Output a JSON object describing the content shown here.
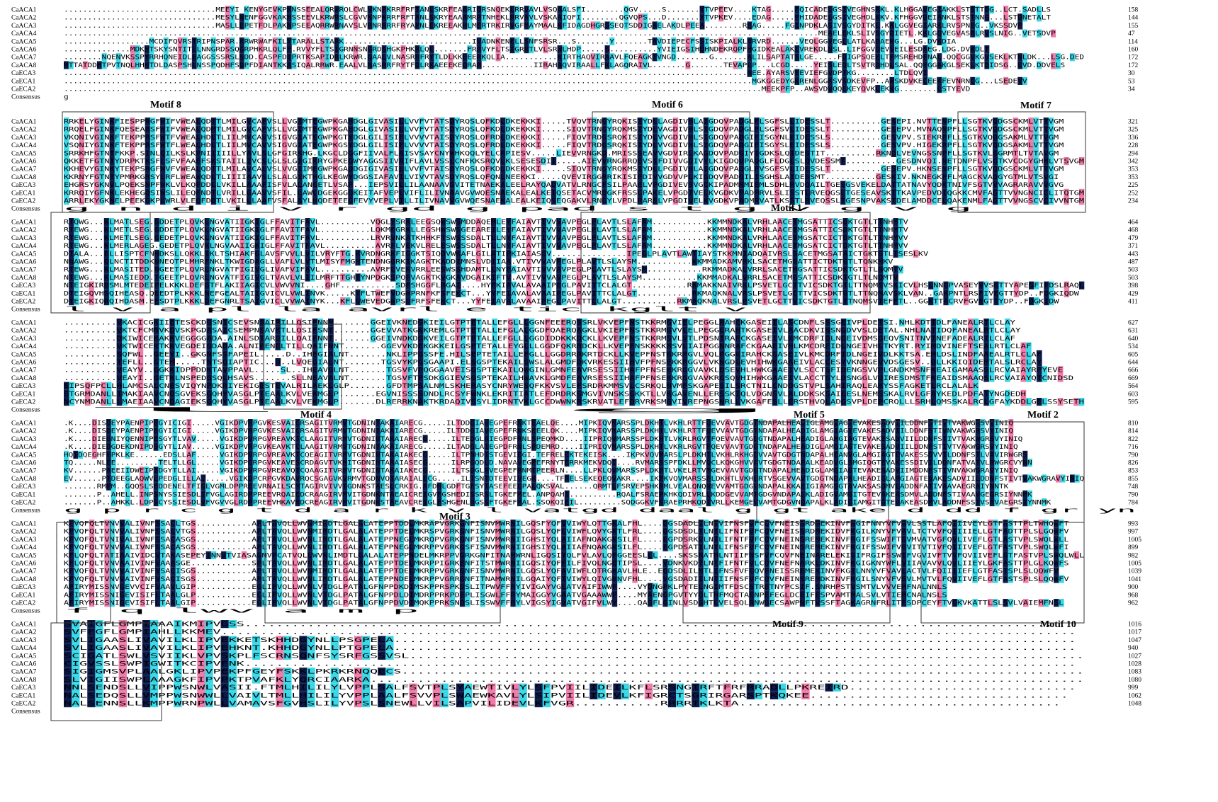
{
  "colors": {
    "identical": "#0d1a4a",
    "high": "#f07aa8",
    "partial": "#38d8e8",
    "text_on_dark": "#ffffff",
    "text": "#000000",
    "box": "#333333"
  },
  "seq_names": [
    "CaACA1",
    "CaACA2",
    "CaACA3",
    "CaACA4",
    "CaACA5",
    "CaACA6",
    "CaACA7",
    "CaACA8",
    "CaECA3",
    "CaECA1",
    "CaECA2",
    "Consensus"
  ],
  "blocks": [
    {
      "rows": [
        "................................MEEYI KENYGEVKPKNSSEEALQRWRQLCWLVKNPKRRFRFTANLSKRFEAARIQRSNQEKLRRVAVLVSQAALSFI........QGV.....S.......YTVPEEV....KTAG.....FQICADELGSIVEGHNSRKL.KLHGGAVEGIAKKLSTSTTDG..LCT.SADLLS",
        "................................MESYLNENFGGVKAKHSSEEVLKRWRSLCGVVKNPKRRFRFTANLSKRYEAAAMRRTNHEKLRRVAVLVSKAAIQFI........QGVQPS...D.......YTVPKEV....EDAG.....FHIDADELGSIVEGHDLKKV.KFHGGVDEIANKLSTSTNNG...LSTDNETALT",
        "................................MASLLEPETFDLPAKNPSEEAQRRWRNAVSLVRNRRRRFRYAPNLEKREEAKHLMERTRKIRVGFMAYMAALKFIDAGDHGRSSEQTSDDIGAELAKDLPEEA........REAG.....FGINPDKLASIVSGYDITKL.KKLGGVEGIARKLRVSPNEG..VKSSDVP",
        "...............................................................................................................................................................MEAELEKLSLIVSGYDIETL.KKLGGVEGVASRLRVSLNIG..VETSDVP",
        "..................MCDIFQVRSTRIPNSPAR.KRWRWAFKILYTARALLSTARK...........................IVADNKENELLSNFSRSR...S.......Y.......TAVDIEPECFSSISKPIALKLVRVRD......VEQLGGVEGLLATLKADAEKG...LG.DVKDIA",
        "..............MDKHTSKYSNTITLLNNGRDSSQGRPHKRLQLFF.RVVYFLTSIGRNNSNGRDSHGKPHKRLQL.......FRAVYFLTSIGRNTLVLSRWLHDP.....S..........YVIEIGSIHDHNDEKRQPFHGIDKEALAKLVREKDLNSL.LIFGGVQEVVEILESDAEG.LDG.DVKDLT",
        "........NQENVKSSPYRRHQNEIDLEAGGSSSRSLSDD.CASPFDIPRTKSAPIDRLKRWR.QAALVLNASRRFRYTLDLKKEEERKQLIA...........KIRTHAQVIRAAVLFQEAGKTVNGD.......G.......ALILSAPTATSLGE.....FDIGPSQEELTFMSREHDFNAL.QQCGGVKGVSEKLKTNLDK...LSG.DED",
        "MTTATDDHTPVTNQLHHHTDLDASPSHLNSSPQDHFSDPFDIANTKKASIQALRRWR.EAALVLNASRRFRYTFDLRKAEEEKEQRAR...........IIRAHAQVIRAALLFKLAGQRAIVL.......G.......TEVAPLP...LCGD.....YEISLEQLTSVTRDHDLSAL.QQYGGAKGLSEKLKTDIDSG..LVD.DDVELS",
        "................................................................................................................................................NEE.AYARSVEEVIEFGVDPTKG........LTDLQVI",
        ".................................................................................................................................................MGKGGEDYGKRENLGGKSVSDKEVFP..AWSKDVKECEEKFEVNRNCG...LSEDEVV",
        "...................................................................................................................................................MEEKPFP..AWSVDVQQLKEYQVKLEKKG........LSTYEVD",
        ""
      ],
      "nums": [
        "158",
        "144",
        "155",
        "47",
        "114",
        "160",
        "172",
        "172",
        "30",
        "53",
        "34",
        ""
      ],
      "consensus": "g",
      "motifs": [
        "Motif 8",
        "Motif 6",
        "Motif 7"
      ]
    },
    {
      "rows": [
        "RRKELYGINKFIESPPRGFWIFVWEALQDTTLMILGVCAFVSLLVGIMTEGWPKGAHDGLGIVASILLVVFVTATSDYRQSLQFKDLDKEKKKI.....TVQVTRNGYRQKISIYDLLAGDIVHLAIGDQVPADGLFLSGFSLLIDESSLT..........GESEPI.NVTTENPFLLSGTKVQDGSCKMLVTTVGM",
        "RRQELFGINKFQESEARSFWIFVWEALQDMTLMILGVCAFVSLLVGIMTEGWPKGAHDGLGIVASILLVVFVTATSDYRQSLQFKDLDKEKKKI.....SIQVTRNGYRQKMSIYDLVAGDIVHLSIGDQVPADGLFLSGFSVLIDESSLT..........GESEPV.MVNAQNPFLLSGTKVQDGSCKMLVTTVGM",
        "VKQNIVGINKFTEKPPRSFWTFVWEALHDLTLIILMVCAVVSIGVGIATEGWPKGTYDGLGILISIFLVVVVTAISDYRQSLQFRDLDKEKKKI.....FIQVTRDGSRQKISIYDLVVGDIVHLSIGDQVPADGIFISGYNLEIDESSLS..........GESVPV.SIEKRPFLLSGTKVQDGSAKMLVTTVGM",
        "VSQNIYGINKFTEKPPRSFWTFLWEALHDLTLIILMVCAVVSIGVGIATEGWPKGSYDGLGILISIFLVVVVTAISDYRQSLQFRDLDKEKKKI.....FIQVTRDGSRQKISIYDLVVGDIVHLSIGDQVPADGIFISGYSLEIDESSLS..........GESVPV.HIGEKRPFLLSGTKVQDGSAKMLVTTVGM",
        "SRRKHFGTNTFKKP.SINLQILKSLKPNIIIIILLYAVLSLGFGIRKHG.LKGCLDGGFIIVALFLAISVSAYCNYWHKQQLYELCRPIESV.....LIEVVRNGKD.MRISSSEAVVGDVIRLKAGDQVPADGIYIGDKSLQIDESTIT..........RKNDLVEVNGSSNPFLLSGTKVLSGRMTLTVTAVGM",
        "QKKETFGTNTYDRPKTKSFLSFVFAAEFSKSTAIILIVCSLGLSLGIGIKRYGPKEGWYAGGSIIVAIFLAVLVSSLCNFKKSRQVLKLSESESDII.....AIEVVRNGRRQEVSIFDIVVGDIVYLKIGDQVPADGLFLDGLSLQVDESSMT..........GESDNVQI.NETQNPFLVSGTKVCDGYGHMLVTSVGM",
        "KKHEVYGINKYTEKPSRGFWVFVWEALQDTTLMILAVCALVSLVVGIIMEGWPKGAQDGIGIVASILLVVFVTAISDYRQSLQFKDLDKEKKKI.....SIQVTRNGYRQKMSIYDLLPGDIVHLAIGDQVPADGLFVSGFSVLIDESSLT..........GESEPV.HKNSENPFLLSGTKVQDGSCKMLVTTVGM",
        "KKRNYFGTNTYPMRKGRSYLRFLWEAWQDLTLIIIIAAVSLSLALGIKTHGLKEGWYDGGSIAFAVILVIVVTAVSDYRQSLQFQNLNEEKKI.....QVEVIRGGRRIKISIFDIVVGDVVPLKIGDQVPADGILISGHSLAIDESSMT..........GESKIV.NKNEGKPFLMAGCKVADGYGTMLVTSVGI",
        "EHGRSYGKNVLPQEKSNPFWKLVLKQFDDLLVKILLAAAFISFVLALANGETLVSAF...IEPSVILLILAANAAVGVITETNAEKALEELRAYQADVATVLRNGCFSILPAAELVPGDIVEVSVGCKIPADMRMIEMLSDHLRVDQAILTGESGSVEKELDATTATNAVYQDKTNIVFSGTVVVAGRARAVVVGVG",
        "KRRQIYGFNKLEKHEGQSIWSLILEQFNDTLVRILLGAAVVSFIL.LAWLDGEKGGQKEITAFVEPLVIFLILIVNAAVGVWQESNAEKALEALKEIQSETACVMRDGKFRSSLPAKELVPGDIVELKVGDKVPADMRVLSLISSTLRVEQGSLTGESEAVSKTTKAVPEDVDIQGKKCMVFAGTTVVNGNCICLITQTGM",
        "ARRLEKYGKNELPEEKGKPLWRLVLEQFDDTLVKILLLAAFVSFALAYLHQDETEEGFEVYVEPLVILLILIVNAVVGVWQESNAEKALEALKEIQSEQGAKVLRNGYLVPDLPARELVPGDIVELKVGDKVPADMRVATLKSSTLRVEQSSLTGESNPVAKSTDELAMDDCELQAKENMLFAGTTVVNGSCVCIVVNTGM",
        ""
      ],
      "nums": [
        "321",
        "325",
        "336",
        "228",
        "294",
        "342",
        "353",
        "353",
        "225",
        "252",
        "234",
        ""
      ],
      "consensus": "g    n              d    i                                                        v   r         gd      g   pad         s                 t                    g   v    g     v   g",
      "motifs": [
        "Motif 1"
      ]
    },
    {
      "rows": [
        "RTQWG...KLMATLSEG.GDDETPLQVKLNGVATIIGKIGLFFAVITFAVL..........VQGLYSRKLEEGSQWSWSMDDAQEMLEYFAIAVTIVVVAVPEGLPLAVTLSLAFAM...........KKMMNDKALVRHLAACETMGSATTICSDKTGTLTTNHMTV",
        "RTEWG...KLMETLSEG.GDDETPLQVKLNGVATIIGKIGLFFAVITFAVL..........LQKMFGRKLLEGSHWSWSGEEAREILEYFAIAVTIVVVAVPEGLPLAVTLSLAFAM...........KKMMNDKALVRHLAACETMGSATTICSDKTGTLTTNHMTV",
        "RTEWG...KLMETLSEG.GEDETPLQVKLNGVATIIGKIGLFFAVITFAVL..........LRVRVNKATKHHKFTSWSSSDALTLLNYFAIAVTIVVVAVPEGLPLAVTLSLAFAM...........KKMMNDKALVRHLAACETMGSATCICTDKTGTLTTNHMVV",
        "RTEWG...KLMERLAGEG.GEDETPLQVKLNGVAAIIGKIGLFFAVITFAVL..........AVRFLVEKVLRELESWSSSDALTLLNYFAIAVTIVVVAVPEGLPLAVTLSLAFAM...........KKMMNDKALVRHLAACETMGSATCICTDKTGTLTTNHMVV",
        "DTALA...ELLISPTCFNHDKSLLQKKLIKLTSHIAKFGLAVSFVVLLVILVRYFTG.KVRDNGRKFIGGKTSIQDVWKAFLGILATIPKIAIASGV...............IPEGLPLAVTLAWTIAYSTKKMNIADQAIVRSLSACETMGSATAICTGKTGTLTSESLKV",
        "NNAWG...QLNCTITDDKNNEQTPLMHRFNKLTKWIGDAGLLVAFLVLVTLMISYFMGHTENDNGGRKIKAGKTKADDIMNSLVDIIAA.VTIVVVAVPEGLPLAVTLSLAYSM...........KKMMADKAMVRKLSACETMGSATTICTDKTGTLTQNKMKV",
        "RTEWG...KLMASITED.NGEETPLQVRLNGVATFIGIVGLIVAFVIFAVL..........AVRFLVEKVRRLEESWSSHDAMTLLNYFAIAVTIVVVAVPEGLPLAVTLSLAYSM...........RKMMADKALVRRLSACETMGSATTICSDKTGTLTLNQMTV",
        "NTEWG...KLMASIEDD.TGEETPLQVRLNGVATFIGIVGLTVAVLVLIILMRFTTGHTYNPDGKSPQFVAGKTKVGKAVDGAIKIFTV.AVTIVVVAVPEGLPLAVTLSLAYSM...........KKMMADKALVRRLSACETMGSATTICSDKTGTLTLNQMTV",
        "NTEIGKIRDSMLMTEDEIPELKKKLDEFGTFLAKIIAGICVLVWVVNI....GHF...........SDPSHGGFLRGAI....HYFKIAVALAVAAIPEGLPAVITTCLALGT...........RKMAKKNAIVRKLPSVETLGCTTVICSDKTGTLTTNQMSVSKICVLHSLNNGPVASEYVVSGTTYAPEGFIFDSLRAQL",
        "DTEIGQVHSQIHEASQ.QEEDTPLKKKLNEFGEALTAIIGVICVLVWLINVK.....KYFLTWEFVDGWPRNFKFSFEKCT...YYFEIAVALAVAAIPEGLPAVITTCLALGT...........RKMAQKNALVRSLPSVETLGCTTVICSDKTGTLTTNQMAVSKLVAN..GAKPNTLRSFIVEGTTYDP..FDGKIQDW",
        "DTEIGKIQRQIHDASM.EESDTPLKKKLDEFGNRLTSAIGVICLVVWAINYK...KFLSWEVEDGWPSDFRFSFEKCT...YYFEIAVALAVAAIPEGLPAVITTCLALGT...........RKMAQKNALVRSLPSVETLGCTTVICSDKTGTLTTNQMSVTEFFTL..GGKTTACRVFGVEGTTYDP..FDGKIDW",
        ""
      ],
      "nums": [
        "464",
        "468",
        "479",
        "371",
        "443",
        "487",
        "503",
        "503",
        "398",
        "429",
        "411",
        ""
      ],
      "consensus": "                    l                                                        v   a          pl   la           avrl    e    tic kglt    v",
      "motifs": []
    },
    {
      "rows": [
        "..........VKACICGKIIETESCKDGSNICSEVSNSAIRILLQSIFNNN.......GGEIVKNEDGKIEILGTPTETALLEFGLLLGGNFEEERQSSRLVKVEPFNSTKKRMGVIELPEGGLRAHCKGASEIILASCDNFLSSSGEIVPLDETSI.NHLKDTIDLFANEALRTLCLAY",
        "..........VKTCFCMNVKDVSKPGDASAICSEMPNSAVKTLLQSIFSNT.......GGEVVATKGKKREMLGTPTETALLEFGLALGGDFQAERQAGKLVKIEPFNSTKKRMGVVLELPEGGLRAHTKGASEIVLAACDKVINSNGDVVSLDETAL.NHLNATIDQFANEALRTLCLAY",
        "..........DKIWICEKAKKVEGGGGADA.AINLSDTARDILLQAIFNNT.......GGEIVNDKDGKVEILGTPTETALLEFGLLLGGDIDDKKKDCKLLKVEPFNSTKKRMSVLVTLPDSNTRAFCKGASEIVLKMCDRFIDLNGEIVDMSGEQVSNITNVINEFADEALRTLCLAF",
        "..........VKTWICEKTKKVEGDEIGDADA.ALNIPENELTILLQAIFNNT.......GGEVVKDEKGKKEILGSPTETALLEYGLLLGGDFQKRRDCKLLKVEPFNSKKKKMSVLIAIPGGNNRAFCKGAAEIVHLKMCDRFIDLNGEIVHLTKYRT.RYIMDVINEFTSEALRTLCLAF",
        "..........SQFWL..GEEYI..GKGNFSSFAPEIL.....D..IHEGIALNT.......NKLIPPGSSFE.HILSEPTETAILLEFGLLLGGDRRRKRTDCKLLKVEPFNSTKKRMGVLVQLPGGKIRAHCKGASEIVLKMCDRFIDLNGEIVDLKKTSA.EMLDSLINDFAAEALRTLCLAF",
        "..........TEFLL..GTEM.....TNTSQIAPTIC...D..LVQEGIALNT.......TGSVYKPGSGAAPI.ELSGSPTEKAILSWSLALGMDFDKVRKESSIIHVFPFNSEKKRGGVLVKNGDGEVHIHWKGAAEIVLACCESYVKNNGEVVDSGESV..DLLKKIQIDEMTALSLRCLAY",
        "..........VEAYV..GGKKIDPPDDKTAVPPAVL.....SL..IHEAVGLNT.......TGSVFVPQGGAAVEISGSPTEKAILQWGINLGMNFEAVRSESSIIHAFPFNSEKKRGGVAVKLDSEVHLHWKGAAEIVLSCCTSFIDENGSVVPLGNDKMSNFKEAIGAMAASSLRCVAIAYRPYEVE",
        "..........VEAYI..GETKLNSPEDGSQLHSAVS.......SLLNEAVALNT.......TGSVFTPSDKGGIEVSGSPTEKAILHWAVKLGMDFEAVRSESSIIHAFPFNSEKKRGGVAVKRGSQVHIHWKGAAEIVLACCTGYLDSNGGLVQIRESDMSTFKEAIDSMAAQSLRCVAIAYQTCNIDSD",
        "EIPSQFPCLLHLAMCSALCNESVIQYNPDKRIYEKIGESTEVALRILAEKLGLP.......GFDTMPSALNMLSKHERASYCNRYWESQFKKVSVLEFSRDRKMMSVLCSRKQLNVMFSKGAPESILSRCTNILCNDDGSTVPLSAHIRAQLEAKYSSFAGKETLRCLALALK",
        "STGRMDANLLIMAKIAAVCNDSGVEKSGQHYVASGLPTEAALKVLVEKMGLP.......EGVNISSSSDNDLRCSYFWNKLEKRITIATLEFDRDRKSMGVIVNSKSGKKTLLVKGAVENLLERSSKIQLVDGNSVLALDDKSKSAILESLNEMSSKALRVLGFAYKEDLPDFATYNGDEDH",
        "NCYNMDANLLLMAEIAAVCNDAGIEKSGQHYVASGLPTEAALKVLVEKMGLP.......DLRERRKNAKTKRDAQIVSSYLIDRNTVKLGCCDWWNKRSKRVATLEFDRVRKSMGVIVREPNGSNRLLVKGAFESLLERSTHVQLADGSVPLDEPCRQLLLSRHLQMSSKALRCLGFAYKDDLGELSSYSETH",
        ""
      ],
      "nums": [
        "627",
        "631",
        "640",
        "534",
        "605",
        "644",
        "666",
        "669",
        "564",
        "603",
        "595",
        ""
      ],
      "consensus": "                                    l                                                                                                    g",
      "motifs": [
        "Motif 4",
        "Motif 5",
        "Motif 2"
      ]
    },
    {
      "rows": [
        ".K....DISDEYPAENPIPEGYICIGI.....VGIKDPVRPGVKESVAICRSAGITVRMVTGDNINTAKAIARECG.....ILTDDGIAVEGPEFRNKTEAELQE....MIPKIQVMARSSPLDKHTLVKHLRTTFQEVVAVTGDGTNDAPALHEADIGLAMGIAGTEVAKESADVIILDDNFSTIVTVAKWGRSVYINIQ",
        ".K....DISDEYPAENPIPEGYICIGI.....VGIKDPVRPGVKESVAICRSAGITVRMVTGDNINTAKAIARECG.....ILTDDGIAVEGPEFRNKSEEELQK....MIPKIQVMARSSPLDKHTLVKHLRTTFQEVVAVTGDGTNDAPALHEADIGLAMGIAGTEVAKESADVIILDDNFSTIVNVAKWGRSVYINIQ",
        ".K....DIEGNIYQENNIPESGYTLVAV.....VGIKDPVRPGVREAVKTCLAAGITVRMVTGDNINTAKAIARECG.....ILTEDGLAIEGPDFRNLSPEQMKD....IIPRIQVMARSSPLDKHTLVKRLRGVTFQEVVAVTGDGTNDAPALHEADIGLAMGIAGTEVAKESADVIILDDNFSTIVTVAKWGRSVYINIQ",
        ".K....DIEDGDEKDNIPDSGYTLIAV.....VGIKDPVRPGVKEAVKTCLAAGITVRMVTGDNINTAKAIARECG.....ILTADGLAIEGPDFRNLSPDEMRD....IIPRIQVMARSSPLDKHTLVKRLRGVTFQEVVAVTGDGTNDAPALHEADIGLAMGIAGTEVAKESADVIILDDNFSTIVTVAKWGRSVYINIQ",
        "HQIDQEGHFHPKLKE......EDSLLAF.....VGIKDPVRPGVREAVKTCQEAGITVRMVTGDNINTAKAIAKECG.....ILTPNHDISTGEVIEGI.TEFRELEKTEKEISK....IKPKVQVMARSLPLDKHTLVKHLRKHGDVVAVTGDGTNDAPALHEANVGLAMGIAGTEVAKESSDVVILDDNFSTLVAVIRWGRS",
        "TQ.....NLEE.........TELTLLGL.....VGIKDPCRPGVKEAVESCRDAGVTVKMITGDNIHTARAIASECG.....ILRPGQDLD.NAVAVEGPEFRNYTERRKMEKVDQI....RVMARSSPFDKLLMVQCLKQKGHVVAVTGDGTNDAPALKEADVGLSMGIQGTEVAKESSDIVILDDNFATVATVLRWGRCVYNN",
        "KV......PAEEIIDWEIPIDGYTLLAI.....VGIKDPVRPGVREAVQTCQAAGITVRMVTGDNINTAKAIAKECG.....ILTSDGLAVEGPEFRNMTPEERLN....LLPKLQVMARSSPLDKHTLVKELRTVMGEVVAVTGDGTNDAPALHEADIGLAMGIAGTEVAKENADVIIMDDNFSTIVNVAKWGRAVYINIQ",
        "EV......PTDEEGLAQWVLPEDGLILLAI.....VGIKDPCRPGVKDAVRQCSGAGVKVRMVTGDNVQTARAIALECG.....ILTSNTDTEEVIVEGK....TFRELSEKEQEQVAKR....IKPKVQVMARSSPLDKHTLVKHLRTVSGEVVAVTGDGTNDAPALHEADIGLAMGIAGTEVAKESADVIILDDNFSTIVTVAKWGRAVYINIQ",
        ".......RMPM..GQQSLSFDDENELTFIGLVGMLDPPREEVRNAILSCMTAGIRVIVVTGDNKSTAESLCRKIG.AFDHLGDFTGFSYTASEFEELPALQKSVAL......QRMTLFSRVEPSHKRMLVEALQNQNEVVAMTGDGVNDAPALKKAEIGIAMGSGTAVAKSASDMVLADDNFATIVAAVAEGRAIYNNTK",
        ".......P..AHELL.INPSNYSSIESDLIFVGLAGIRDPPREEVRQAIEDCRAAGIRVMVITGDNKNTAEAICREIGVFGSHEDISSRSLTGKEFMEL.ANPQAHI..........RQALFSRAEPKHKQDIVRLLKDDGEVVAMTGDGVNDAPALKLADIGVAMGITGTEVAKEASDMVLADDNFSTIVAAVGEGRSIYNNMK",
        ".......P..AHKKL.LDPSCYSSIESDLVFVGVVGLRDPPREEVHKAVNDCREAGIRVMVITGDNKSTAEAVCREIGLFSHGENLRGSSFTGKEFMAL.SSQKQIEIL.........SQDGGKVFSRAEPRHKQDIVRLLKEMGEVVAMTGDGVNDAPALKLADIGIAMGITGTEVAKEASDMVLADDNFSSIVSAVAEGRSIYNNMK",
        ""
      ],
      "nums": [
        "810",
        "814",
        "822",
        "716",
        "790",
        "826",
        "853",
        "855",
        "748",
        "790",
        "784",
        ""
      ],
      "consensus": "                                    g  p   r           c      g      t   d     a                                                  r          k  v l               vatgd    daal       g   gt    ake   d      dd  f           gr  yn",
      "motifs": [
        "Motif 3"
      ]
    },
    {
      "rows": [
        "KFVQFQLTVNVVALIVNFSSACLTGS...........APLTAVQLLWVNMIMDTLGALALATEPPTDDLMKRAPVGRKGNFISNVMWRNILGQSFYQFVVIWYLQTTGKALFHL....DGSDADLILNTVIFNSFVFCQVFNEISSRDMEKINVFNGIFNNYVFVAVLSSTLAFQIIIVEYLGTFASTTPLTWHQWFT",
        "KFVQFQLTVNVVALIVNFSSACVTGS...........APLTAVQLLWVNMIMDTLGALALATEPPTDELMKRSPVGRKGNFISNVMWRNILGQSLYQFLVIWFLQVYGKTLFRL....DGSDSDLTLNTLIFNIFVFCQVFNEISSRDMEKIDVFKGILKNYVFVAVLTCTVVFQIIIIELLGTFADTTPLSLGQWFV",
        "KFVQFQLTVNIVALIVNFSSACASGS...........APLTAVQLLWVNLIMDTLGALALATEPPNEGLMKRQPVGRKGNFISNVMWRNIIGHSIYQLAIIAFNQAKGKSILFL....EGPDSRKVLNTLIFNTFVFCQVFNEINSREMEKINVFRGIFSSWIFTGVMVATVGFQVLIVEFLGTLASTVPLSWQLWLL",
        "KFVQFQLTVNVVALIVNFSSACASGS...........APLTAVQLLWVNLIMDTLGALALATEPPNEGLMKRPPVGRKGSFISNVMWRNIIGHSIYQLAIIAFNQAKGKSILFL....EGPDSATILNTLIFNSFVFCQVFNEINSREMEKINVFKGIFSSWIFVGVITVTIVFQIIIVEFLGTFASTVPLSWQLWFI",
        "KFLQFQLTATIAAIVIDCVTAKASEPEYINNVTVIASAGNVPCATVQLLWVNLIMDTLGALALATEPPNDELMKRPPVGRKGNFITNAMWRNLIGQSIYQLFVLAVLQFGGEESLLL....SKSSNATHLNTIIFNSFVFCQVFNEINARELEKISIFRGIFSSWIFVGVIVFTVVFQVIIVEFLGTFASTVPLSWQLWLL",
        "KFLQFQLTVNVAAIVINFVAAASGE............SPLTAVQLLWVNLIMDTLGALALATEPPTDELMKRPPIGRKENFITSTMWRNIIGQSIYQFFILFIVQLNGQTIPSL....VDNKVKDTLNTFIFNTFVLCQVFNEFNARKLDKINVFKGIGKNYWFLVIIAVAVVLQVLIIEYLGKFASTTPLGLKQWFS",
        "KFVQFQLTVNVVAIVINFVSACISGS...........APLTAVQLLWVNMIMDTLGALALATEPPTDELMKRPPVGRKGNFISNVMWRNILGQSLYQFAVIWFLQTRGKAVLHLE..EQDSDLILNTLIFNSFVFCQVFNEISSREMEKINVFKGILNNYVFVAVLACTVLFQIIIIEFLGTFASTSPLSLQQWFV",
        "KFVQFQLTVNVVAIVINFVSACISGS...........APLTAVQLLWVNLIMDTLGALALATEPPNDELMKRPPVGRRGNFITNAMWRNILGQAIYQFIVIWYLQIVGKNVFHL....VGSDADIILNTIIFNSFVFCQVFNEINSREMDKINVFKGILSNYVFVGVLMVTVLFQVIIVEFLGTFASTSPLSLQQWFV",
        "AFIRYMISSNVGEVVCIFVAAVLGIP...........EGLIPVQLLWVNLVTDGLPATALGFNPPDKDIMSKPPRSPKDSLITPWVFFRYIVIGAYVGLATVAIFIWWF....VYDNGPKLPYTELNGIMTFDSCSTRETNYPCSIF.SNRHPSTVSMTVLVVVEMFNALNNLS",
        "AFIRYMISSNIGEVISIFLTAALGLP...........ECLIPVQLLWVNLVTDGLPATALGFNPPDLDIMDRPPRKPDEPLISGWLFFRYMAIGGYVGAATVGAAAWWF....MYAENGPGVTYYQLTHFMQCTAENPEFEGLDCEIFESPVAMTMALSVLVTIEMCNALNSLS",
        "AFIRYMISSNIGEVISIFLTAALGIP...........EGLIPVQLLWVNLVTDGLPATALGFNPPDVDIMQKPPRKSNDSLISSWVFFRYLVIGSYIGVATVGIFVLWY....QASFLGINLVSDGHTLVELSQLRNWGECSAWPNFTVSSFTAGKAGRNFRLITFSDPCEYFTVGKVKATTLSLSVLVAIEMFNSL",
        ""
      ],
      "nums": [
        "993",
        "997",
        "1005",
        "899",
        "982",
        "1005",
        "1039",
        "1041",
        "900",
        "968",
        "962",
        ""
      ],
      "consensus": " f                                     q lwv         a          m    p",
      "motifs": [
        "Motif 9",
        "Motif 10"
      ]
    },
    {
      "rows": [
        "SVAIGFLGMPIAAAIKMIPVGSS.......................................................................................................",
        "SVFFGFLGMPIAHLLKKMEV.............................................................................................................",
        "SVLIGAASLIVAVILKLIPVEKKETSKHHDGYNLLPSGPELA.......................................................................................",
        "SVLIGAASLIVAVILKLIPVEHKNT.KHHDGYNLLPTGPELA.......................................................................................",
        "SCIGATLSWLVSVIIKLVPVSKPLFSCRNSQNFSYSRFGSSVSL......................................................................................",
        "CIGVSSLSWPIGWITKCIPVFNK..........................................................................................................",
        "SIGIGMSVPLAALGKLIPVPEKPFGEYFSKKLPKRKRNQQECS.......................................................................................",
        "SLVIGIISWPLAAAGKFIPVPKTPVAFKLYQRCIAARKA...........................................................................................",
        "NNLSENDSLLVIPPWSNWLVASII.FTMLHILILYLVPPLSALFSVTPLSYAEWTIVLYLSFPVIILIDEILKFLSRSNGIRFTFRFRRADLLPKREIRD.............................",
        "NALSEDQSLLVMPPWSNWWLLVAIVLTMLLHILILYVPPLAALFSVVPLSWAEWKAVLYLSIPVIILIDEVLKFIGRCTSGRIRGARSPTKQKEE.................................",
        "NALSENNSLLKMPPWRNPWLLVAMAVSFGVHSLILYVPSLSNEWLLVILSAPVILIDEVLKFVGR...........RRRRTKLKTA.........................................",
        ""
      ],
      "nums": [
        "1016",
        "1017",
        "1047",
        "940",
        "1027",
        "1028",
        "1083",
        "1080",
        "999",
        "1062",
        "1048",
        ""
      ],
      "consensus": "",
      "motifs": []
    }
  ]
}
